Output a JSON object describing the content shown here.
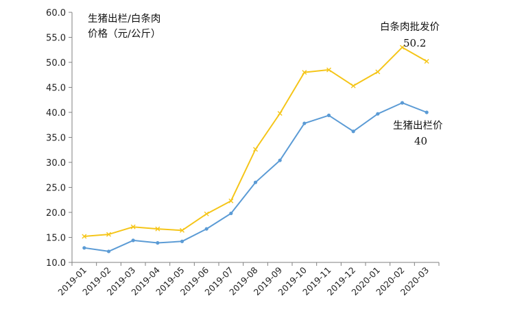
{
  "chart_data": {
    "type": "line",
    "title": "",
    "ylabel_lines": [
      "生猪出栏/白条肉",
      "价格（元/公斤）"
    ],
    "xlabel": "",
    "ylim": [
      10.0,
      60.0
    ],
    "yticks": [
      "10.0",
      "15.0",
      "20.0",
      "25.0",
      "30.0",
      "35.0",
      "40.0",
      "45.0",
      "50.0",
      "55.0",
      "60.0"
    ],
    "grid": false,
    "categories": [
      "2019-01",
      "2019-02",
      "2019-03",
      "2019-04",
      "2019-05",
      "2019-06",
      "2019-07",
      "2019-08",
      "2019-09",
      "2019-10",
      "2019-11",
      "2019-12",
      "2020-01",
      "2020-02",
      "2020-03"
    ],
    "series": [
      {
        "name": "白条肉批发价",
        "color": "#F5C518",
        "marker": "x",
        "values": [
          15.2,
          15.6,
          17.1,
          16.7,
          16.4,
          19.7,
          22.3,
          32.6,
          39.8,
          48.0,
          48.5,
          45.3,
          48.1,
          53.0,
          50.2
        ],
        "end_label": "50.2"
      },
      {
        "name": "生猪出栏价",
        "color": "#5B9BD5",
        "marker": "dot",
        "values": [
          12.9,
          12.2,
          14.4,
          13.9,
          14.2,
          16.7,
          19.8,
          26.0,
          30.4,
          37.8,
          39.4,
          36.2,
          39.7,
          41.9,
          40.0
        ],
        "end_label": "40"
      }
    ]
  }
}
